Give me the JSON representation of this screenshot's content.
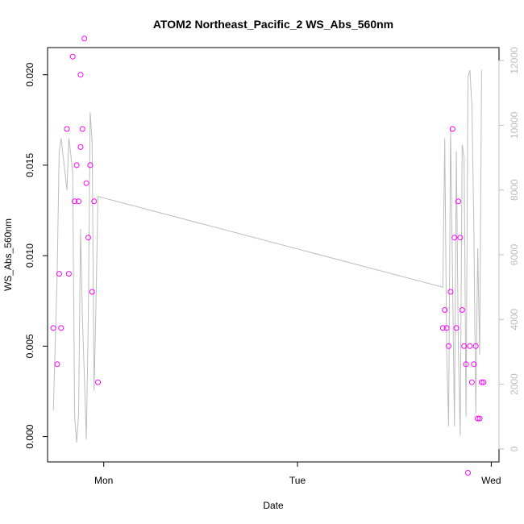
{
  "chart_data": {
    "type": "scatter",
    "title": "ATOM2 Northeast_Pacific_2 WS_Abs_560nm",
    "xlabel": "Date",
    "ylabel": "WS_Abs_560nm",
    "x_ticks": [
      "Mon",
      "Tue",
      "Wed"
    ],
    "y_ticks": [
      "0.000",
      "0.005",
      "0.010",
      "0.015",
      "0.020"
    ],
    "y2_ticks": [
      "0",
      "2000",
      "4000",
      "6000",
      "8000",
      "10000",
      "12000"
    ],
    "xlim_days": [
      -0.29,
      2.04
    ],
    "ylim": [
      -0.0014,
      0.0215
    ],
    "y2lim": [
      -400,
      12400
    ],
    "grid": false,
    "series": [
      {
        "kind": "points",
        "color": "#ff00ff",
        "x_days": [
          -0.26,
          -0.24,
          -0.23,
          -0.22,
          -0.19,
          -0.18,
          -0.16,
          -0.15,
          -0.14,
          -0.13,
          -0.12,
          -0.12,
          -0.11,
          -0.1,
          -0.09,
          -0.08,
          -0.07,
          -0.06,
          -0.05,
          -0.03,
          1.75,
          1.76,
          1.77,
          1.78,
          1.79,
          1.8,
          1.81,
          1.82,
          1.83,
          1.84,
          1.85,
          1.86,
          1.87,
          1.88,
          1.89,
          1.9,
          1.91,
          1.92,
          1.93,
          1.94,
          1.95,
          1.96
        ],
        "y": [
          0.006,
          0.004,
          0.009,
          0.006,
          0.017,
          0.009,
          0.021,
          0.013,
          0.015,
          0.013,
          0.016,
          0.02,
          0.017,
          0.022,
          0.014,
          0.011,
          0.015,
          0.008,
          0.013,
          0.003,
          0.006,
          0.007,
          0.006,
          0.005,
          0.008,
          0.017,
          0.011,
          0.006,
          0.013,
          0.011,
          0.007,
          0.005,
          0.004,
          -0.002,
          0.005,
          0.003,
          0.004,
          0.005,
          0.001,
          0.001,
          0.003,
          0.003
        ]
      },
      {
        "kind": "line",
        "color": "#bdbdbd",
        "x_days": [
          -0.26,
          -0.24,
          -0.23,
          -0.22,
          -0.19,
          -0.18,
          -0.17,
          -0.16,
          -0.15,
          -0.14,
          -0.13,
          -0.12,
          -0.11,
          -0.1,
          -0.09,
          -0.08,
          -0.07,
          -0.06,
          -0.05,
          -0.04,
          -0.03,
          1.75,
          1.76,
          1.77,
          1.78,
          1.79,
          1.8,
          1.81,
          1.82,
          1.83,
          1.84,
          1.85,
          1.86,
          1.87,
          1.88,
          1.89,
          1.9,
          1.91,
          1.92,
          1.93,
          1.94,
          1.95
        ],
        "y2": [
          1200,
          5500,
          9200,
          9600,
          8000,
          9600,
          9100,
          8500,
          1000,
          200,
          1100,
          6800,
          4000,
          2200,
          300,
          4000,
          10400,
          9500,
          1800,
          4500,
          7800,
          5000,
          9600,
          3000,
          700,
          9900,
          5400,
          700,
          9200,
          3200,
          400,
          9400,
          9000,
          1000,
          11500,
          11700,
          10600,
          6800,
          1100,
          6200,
          2900,
          11700
        ]
      }
    ]
  }
}
